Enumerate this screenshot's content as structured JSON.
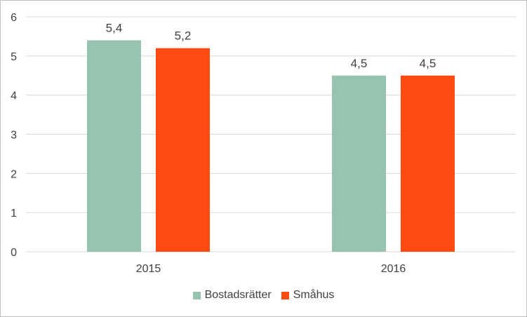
{
  "chart_data": {
    "type": "bar",
    "categories": [
      "2015",
      "2016"
    ],
    "series": [
      {
        "name": "Bostadsrätter",
        "values": [
          5.4,
          4.5
        ],
        "labels": [
          "5,4",
          "4,5"
        ],
        "color": "#97c4b0"
      },
      {
        "name": "Småhus",
        "values": [
          5.2,
          4.5
        ],
        "labels": [
          "5,2",
          "4,5"
        ],
        "color": "#ff4a12"
      }
    ],
    "ylim": [
      0,
      6
    ],
    "yticks": [
      "0",
      "1",
      "2",
      "3",
      "4",
      "5",
      "6"
    ],
    "grid": true,
    "legend_position": "bottom"
  }
}
